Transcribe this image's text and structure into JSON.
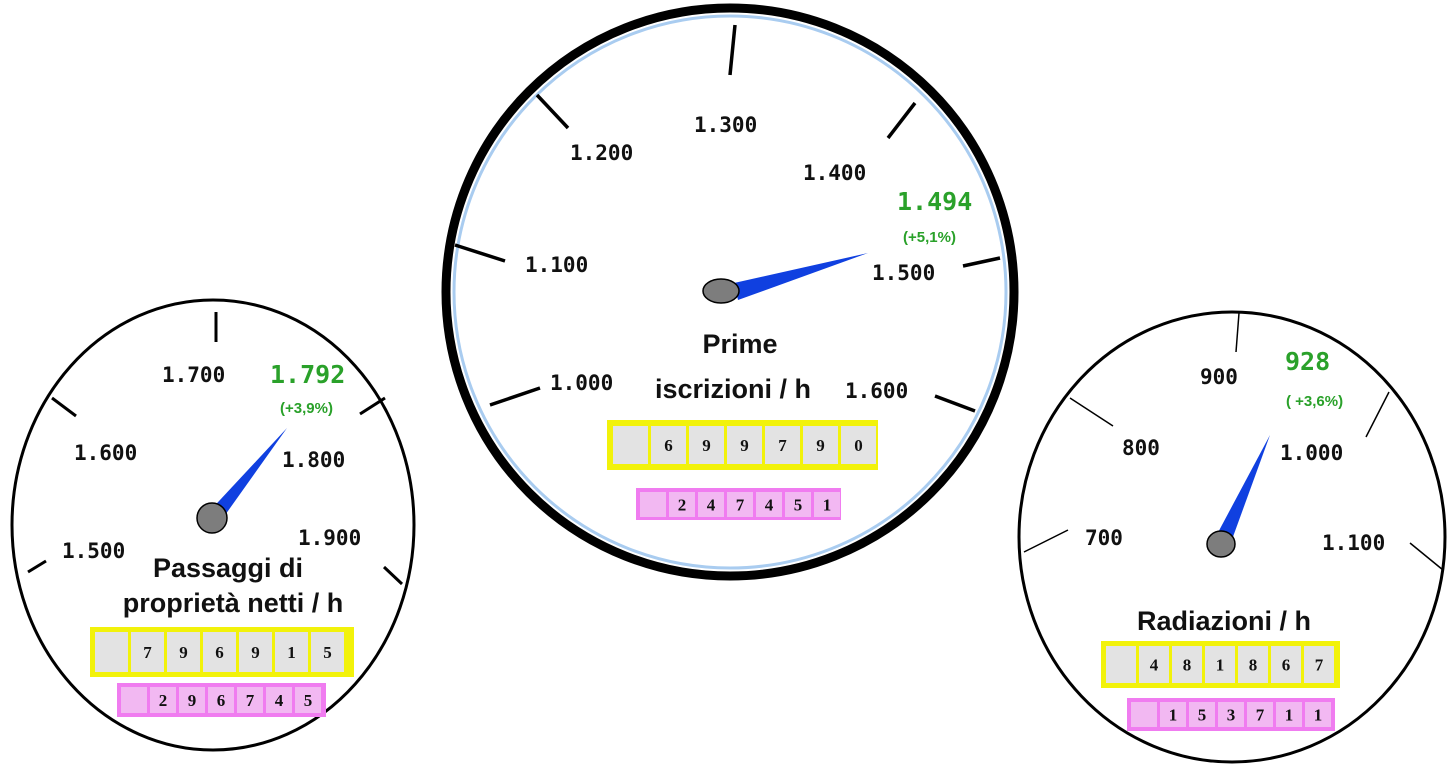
{
  "colors": {
    "value_green": "#2aa12a",
    "needle_blue": "#1040e0",
    "counter_yellow": "#f2f20a",
    "counter_cell": "#e3e3e3",
    "counter_pink": "#f07cf0",
    "pink_cell": "#f2b8f2",
    "hub_gray": "#7d7d7d",
    "rim_light_blue": "#a9ccf0"
  },
  "gauges": [
    {
      "id": "passaggi",
      "title_lines": [
        "Passaggi di",
        "proprietà netti / h"
      ],
      "tick_labels": [
        "1.500",
        "1.600",
        "1.700",
        "1.800",
        "1.900"
      ],
      "value": "1.792",
      "change": "(+3,9%)",
      "counter_digits": [
        "",
        "7",
        "9",
        "6",
        "9",
        "1",
        "5"
      ],
      "sub_counter_digits": [
        "",
        "2",
        "9",
        "6",
        "7",
        "4",
        "5"
      ]
    },
    {
      "id": "prime",
      "title_lines": [
        "Prime",
        "iscrizioni / h"
      ],
      "tick_labels": [
        "1.000",
        "1.100",
        "1.200",
        "1.300",
        "1.400",
        "1.500",
        "1.600"
      ],
      "value": "1.494",
      "change": "(+5,1%)",
      "counter_digits": [
        "",
        "6",
        "9",
        "9",
        "7",
        "9",
        "0"
      ],
      "sub_counter_digits": [
        "",
        "2",
        "4",
        "7",
        "4",
        "5",
        "1"
      ]
    },
    {
      "id": "radiazioni",
      "title_lines": [
        "Radiazioni / h"
      ],
      "tick_labels": [
        "700",
        "800",
        "900",
        "1.000",
        "1.100"
      ],
      "value": "928",
      "change": "( +3,6%)",
      "counter_digits": [
        "",
        "4",
        "8",
        "1",
        "8",
        "6",
        "7"
      ],
      "sub_counter_digits": [
        "",
        "1",
        "5",
        "3",
        "7",
        "1",
        "1"
      ]
    }
  ]
}
